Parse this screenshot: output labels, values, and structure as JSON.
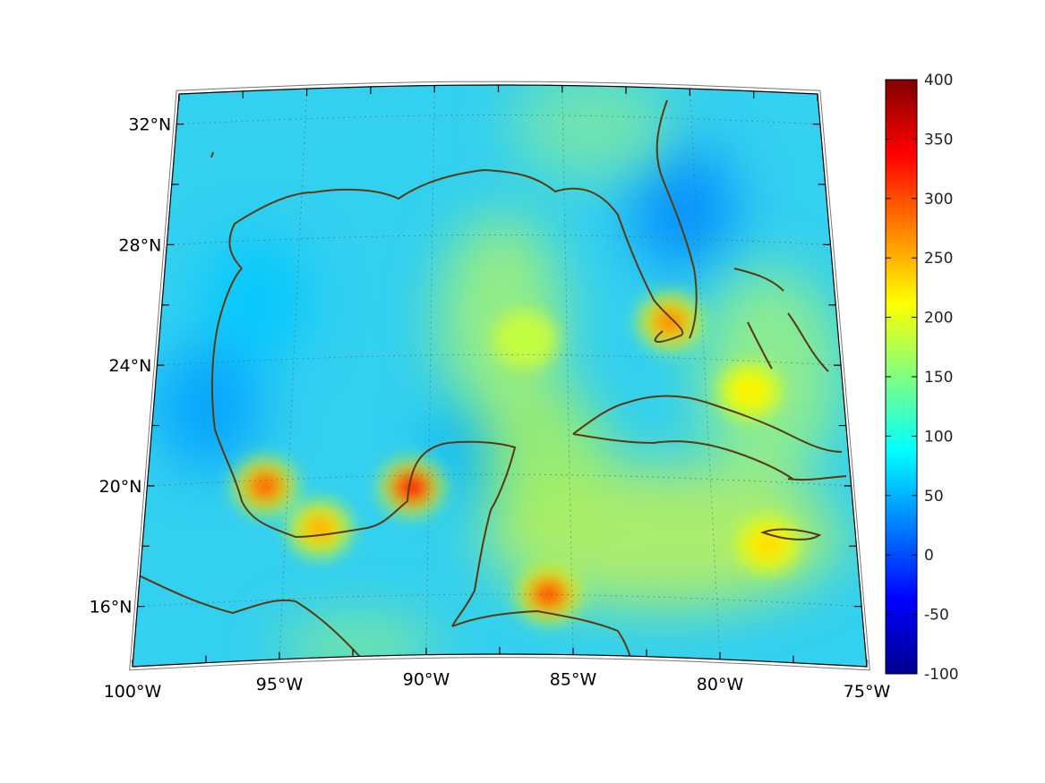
{
  "map": {
    "projection": "lambert-conic",
    "lon_range": [
      -100,
      -75
    ],
    "lat_range": [
      14,
      33
    ],
    "grid": "dotted",
    "coastline_color": "#5a3a10",
    "lat_labels": [
      "32°N",
      "28°N",
      "24°N",
      "20°N",
      "16°N"
    ],
    "lat_values": [
      32,
      28,
      24,
      20,
      16
    ],
    "lon_labels": [
      "100°W",
      "95°W",
      "90°W",
      "85°W",
      "80°W",
      "75°W"
    ],
    "lon_values": [
      -100,
      -95,
      -90,
      -85,
      -80,
      -75
    ],
    "field_hotspots": [
      {
        "lon": -90.6,
        "lat": 19.6,
        "value": 340
      },
      {
        "lon": -95.8,
        "lat": 19.8,
        "value": 290
      },
      {
        "lon": -85.8,
        "lat": 16.0,
        "value": 300
      },
      {
        "lon": -81.2,
        "lat": 25.2,
        "value": 270
      },
      {
        "lon": -93.8,
        "lat": 18.3,
        "value": 250
      },
      {
        "lon": -78.1,
        "lat": 17.9,
        "value": 230
      },
      {
        "lon": -78.4,
        "lat": 23.0,
        "value": 220
      },
      {
        "lon": -86.5,
        "lat": 24.5,
        "value": 180
      }
    ],
    "field_lows": [
      {
        "lon": -98.0,
        "lat": 22.5,
        "value": 40
      },
      {
        "lon": -80.5,
        "lat": 29.0,
        "value": 30
      },
      {
        "lon": -88.0,
        "lat": 21.2,
        "value": 50
      },
      {
        "lon": -96.5,
        "lat": 26.0,
        "value": 60
      }
    ]
  },
  "colorbar": {
    "colormap": "jet",
    "range": [
      -100,
      400
    ],
    "ticks": [
      "400",
      "350",
      "300",
      "250",
      "200",
      "150",
      "100",
      "50",
      "0",
      "-50",
      "-100"
    ],
    "tick_values": [
      400,
      350,
      300,
      250,
      200,
      150,
      100,
      50,
      0,
      -50,
      -100
    ]
  }
}
